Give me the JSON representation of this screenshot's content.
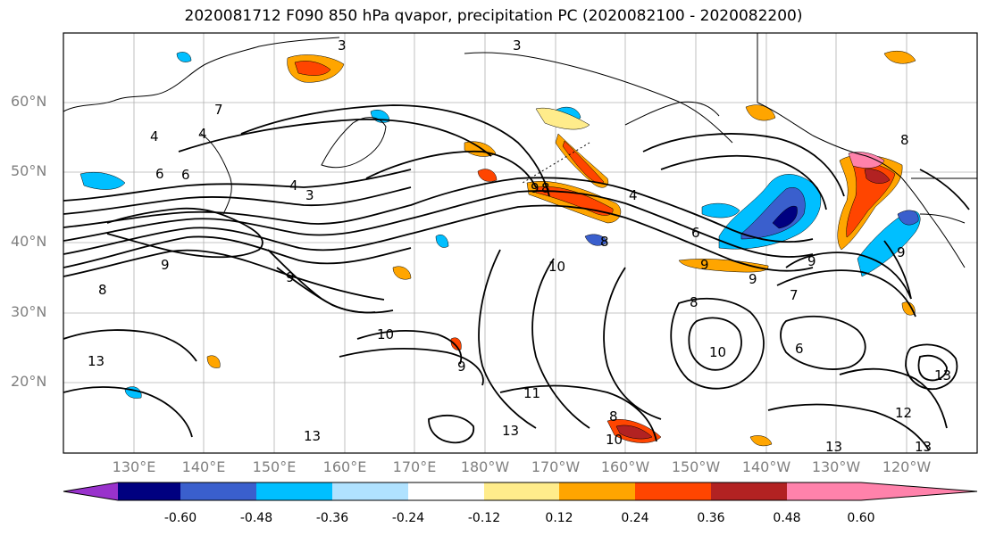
{
  "title": "2020081712 F090 850 hPa qvapor, precipitation PC (2020082100 - 2020082200)",
  "lat_labels": [
    "60°N",
    "50°N",
    "40°N",
    "30°N",
    "20°N"
  ],
  "lon_labels": [
    "130°E",
    "140°E",
    "150°E",
    "160°E",
    "170°E",
    "180°W",
    "170°W",
    "160°W",
    "150°W",
    "140°W",
    "130°W",
    "120°W"
  ],
  "contour_labels": [
    "3",
    "3",
    "4",
    "4",
    "6",
    "4",
    "3",
    "9",
    "8",
    "4",
    "6",
    "9",
    "8",
    "9",
    "10",
    "9",
    "8",
    "7",
    "6",
    "9",
    "10",
    "9",
    "11",
    "13",
    "13",
    "13",
    "12",
    "13",
    "13",
    "10",
    "8",
    "10",
    "9",
    "6",
    "7",
    "13",
    "8",
    "8",
    "9"
  ],
  "colorbar": {
    "colors": [
      "#9932cc",
      "#000080",
      "#3a5fcd",
      "#00bfff",
      "#b0e2ff",
      "#ffffff",
      "#ffec8b",
      "#ffa500",
      "#ff4500",
      "#b22222",
      "#ff82ab"
    ],
    "tick_labels": [
      "-0.60",
      "-0.48",
      "-0.36",
      "-0.24",
      "-0.12",
      "0.12",
      "0.24",
      "0.36",
      "0.48",
      "0.60"
    ]
  }
}
